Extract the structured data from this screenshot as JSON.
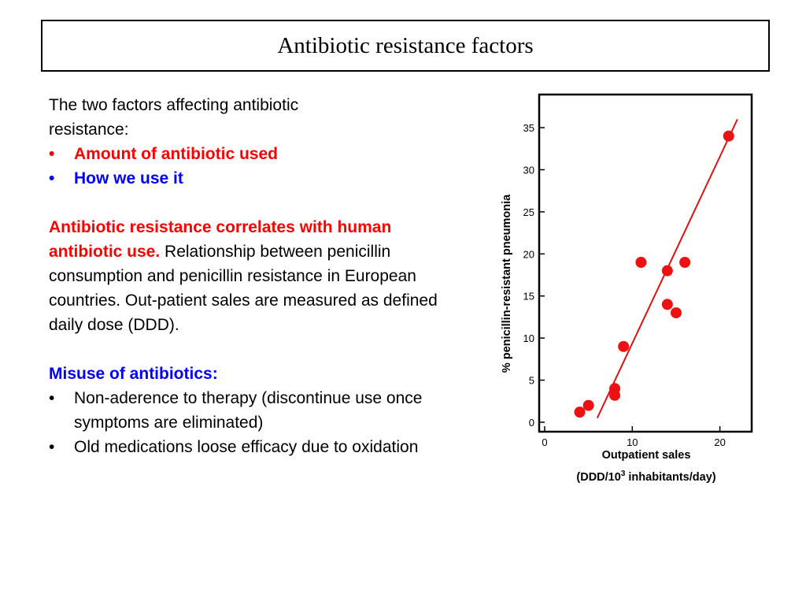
{
  "title": "Antibiotic resistance factors",
  "intro": {
    "line1": "The two factors affecting antibiotic",
    "line2": "resistance:",
    "bullets": [
      "Amount of antibiotic used",
      "How we use it"
    ]
  },
  "correlation": {
    "bold": "Antibiotic resistance correlates with human antibiotic use.",
    "text": " Relationship between penicillin consumption and penicillin resistance in European countries. Out-patient sales are measured as defined daily dose (DDD)."
  },
  "misuse": {
    "heading": "Misuse of antibiotics:",
    "bullets": [
      "Non-aderence to therapy (discontinue use once symptoms are eliminated)",
      "Old medications loose efficacy due to oxidation"
    ]
  },
  "bullet_char": "•",
  "colors": {
    "red": "#ff0000",
    "blue": "#0000ff",
    "marker": "#ee1111",
    "line": "#dd1111"
  },
  "chart_data": {
    "type": "scatter",
    "xlabel": "Outpatient sales",
    "xlabel2_prefix": "(DDD/10",
    "xlabel2_sup": "3",
    "xlabel2_suffix": " inhabitants/day)",
    "ylabel": "% penicillin-resistant pneumonia",
    "xlim": [
      0,
      23
    ],
    "ylim": [
      0,
      38
    ],
    "xticks": [
      0,
      10,
      20
    ],
    "yticks": [
      0,
      5,
      10,
      15,
      20,
      25,
      30,
      35
    ],
    "points": [
      {
        "x": 4,
        "y": 1.2
      },
      {
        "x": 5,
        "y": 2
      },
      {
        "x": 8,
        "y": 3.2
      },
      {
        "x": 8,
        "y": 4
      },
      {
        "x": 9,
        "y": 9
      },
      {
        "x": 11,
        "y": 19
      },
      {
        "x": 14,
        "y": 18
      },
      {
        "x": 14,
        "y": 14
      },
      {
        "x": 15,
        "y": 13
      },
      {
        "x": 16,
        "y": 19
      },
      {
        "x": 21,
        "y": 34
      }
    ],
    "fit_line": [
      {
        "x": 6,
        "y": 0.5
      },
      {
        "x": 22,
        "y": 36
      }
    ],
    "grid": false,
    "legend": "none"
  }
}
